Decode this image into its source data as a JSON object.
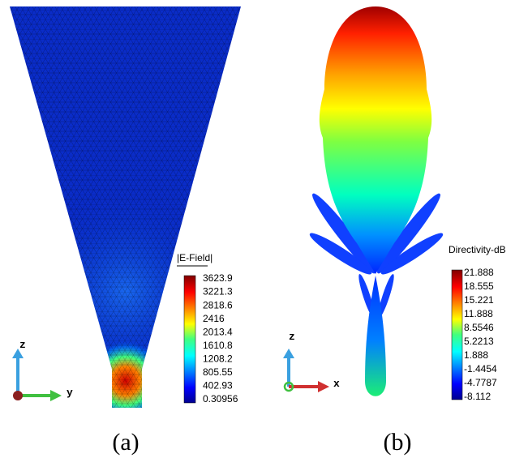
{
  "panels": [
    {
      "colorbar": {
        "title": "|E-Field|",
        "ticks": [
          3623.9,
          3221.3,
          2818.6,
          2416,
          2013.4,
          1610.8,
          1208.2,
          805.55,
          402.93,
          0.30956
        ]
      },
      "axes": [
        "z",
        "y"
      ],
      "caption": "(a)"
    },
    {
      "colorbar": {
        "title": "Directivity-dB",
        "ticks": [
          21.888,
          18.555,
          15.221,
          11.888,
          8.5546,
          5.2213,
          1.888,
          -1.4454,
          -4.7787,
          -8.112
        ]
      },
      "axes": [
        "z",
        "x"
      ],
      "caption": "(b)"
    }
  ]
}
